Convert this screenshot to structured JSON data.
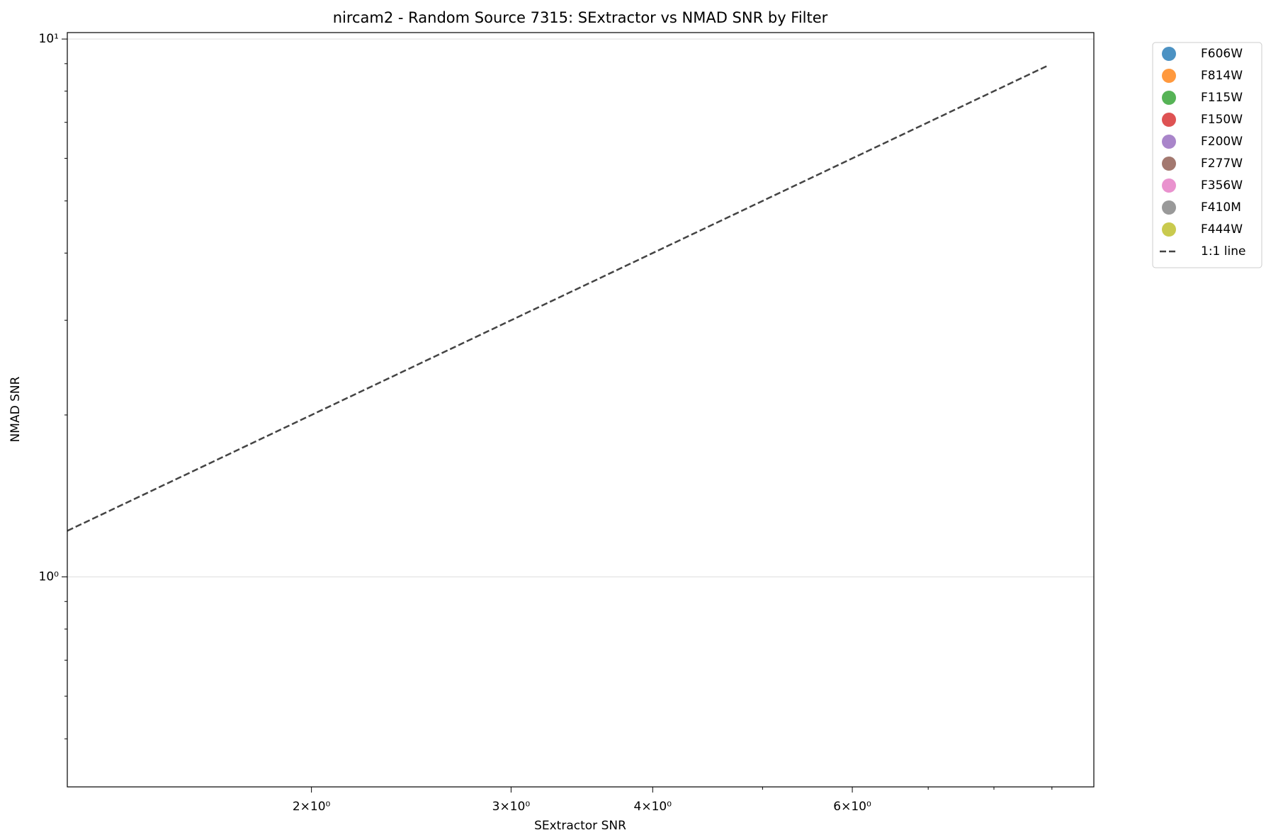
{
  "chart_data": {
    "type": "scatter",
    "title": "nircam2 - Random Source 7315: SExtractor vs NMAD SNR by Filter",
    "xlabel": "SExtractor SNR",
    "ylabel": "NMAD SNR",
    "xscale": "log",
    "yscale": "log",
    "xlim": [
      1.218,
      9.8
    ],
    "ylim": [
      0.407,
      10.28
    ],
    "xticks": [
      {
        "value": 2,
        "label": "2×10⁰"
      },
      {
        "value": 3,
        "label": "3×10⁰"
      },
      {
        "value": 4,
        "label": "4×10⁰"
      },
      {
        "value": 6,
        "label": "6×10⁰"
      }
    ],
    "xminor": [
      5,
      7,
      8,
      9
    ],
    "yticks": [
      {
        "value": 1,
        "label": "10⁰"
      },
      {
        "value": 10,
        "label": "10¹"
      }
    ],
    "yminor": [
      0.5,
      0.6,
      0.7,
      0.8,
      0.9,
      2,
      3,
      4,
      5,
      6,
      7,
      8,
      9
    ],
    "grid": "y",
    "legend": "outside upper right",
    "series": [
      {
        "name": "F606W",
        "color": "#1f77b4",
        "x": [],
        "y": []
      },
      {
        "name": "F814W",
        "color": "#ff7f0e",
        "x": [],
        "y": []
      },
      {
        "name": "F115W",
        "color": "#2ca02c",
        "x": [],
        "y": []
      },
      {
        "name": "F150W",
        "color": "#d62728",
        "x": [],
        "y": []
      },
      {
        "name": "F200W",
        "color": "#9467bd",
        "x": [],
        "y": []
      },
      {
        "name": "F277W",
        "color": "#8c564b",
        "x": [],
        "y": []
      },
      {
        "name": "F356W",
        "color": "#e377c2",
        "x": [],
        "y": []
      },
      {
        "name": "F410M",
        "color": "#7f7f7f",
        "x": [],
        "y": []
      },
      {
        "name": "F444W",
        "color": "#bcbd22",
        "x": [],
        "y": []
      },
      {
        "name": "1:1 line",
        "type": "line",
        "style": "dashed",
        "color": "#444444",
        "x": [
          1.218,
          8.91
        ],
        "y": [
          1.218,
          8.91
        ]
      }
    ]
  }
}
